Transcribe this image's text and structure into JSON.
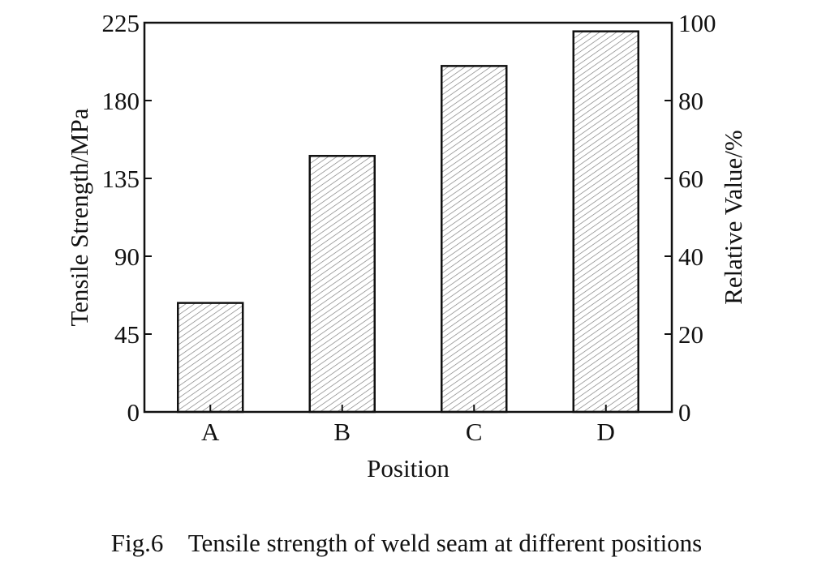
{
  "caption": "Fig.6    Tensile strength of weld seam at different positions",
  "chart_data": {
    "type": "bar",
    "categories": [
      "A",
      "B",
      "C",
      "D"
    ],
    "values": [
      63,
      148,
      200,
      220
    ],
    "xlabel": "Position",
    "ylabel": "Tensile Strength/MPa",
    "ylim": [
      0,
      225
    ],
    "yticks": [
      0,
      45,
      90,
      135,
      180,
      225
    ],
    "y2label": "Relative Value/%",
    "y2lim": [
      0,
      100
    ],
    "y2ticks": [
      0,
      20,
      40,
      60,
      80,
      100
    ],
    "bar_fill": "hatched",
    "colors": {
      "axis": "#111111",
      "bar_edge": "#111111",
      "hatch": "#777777"
    },
    "grid": false,
    "legend": "none"
  }
}
